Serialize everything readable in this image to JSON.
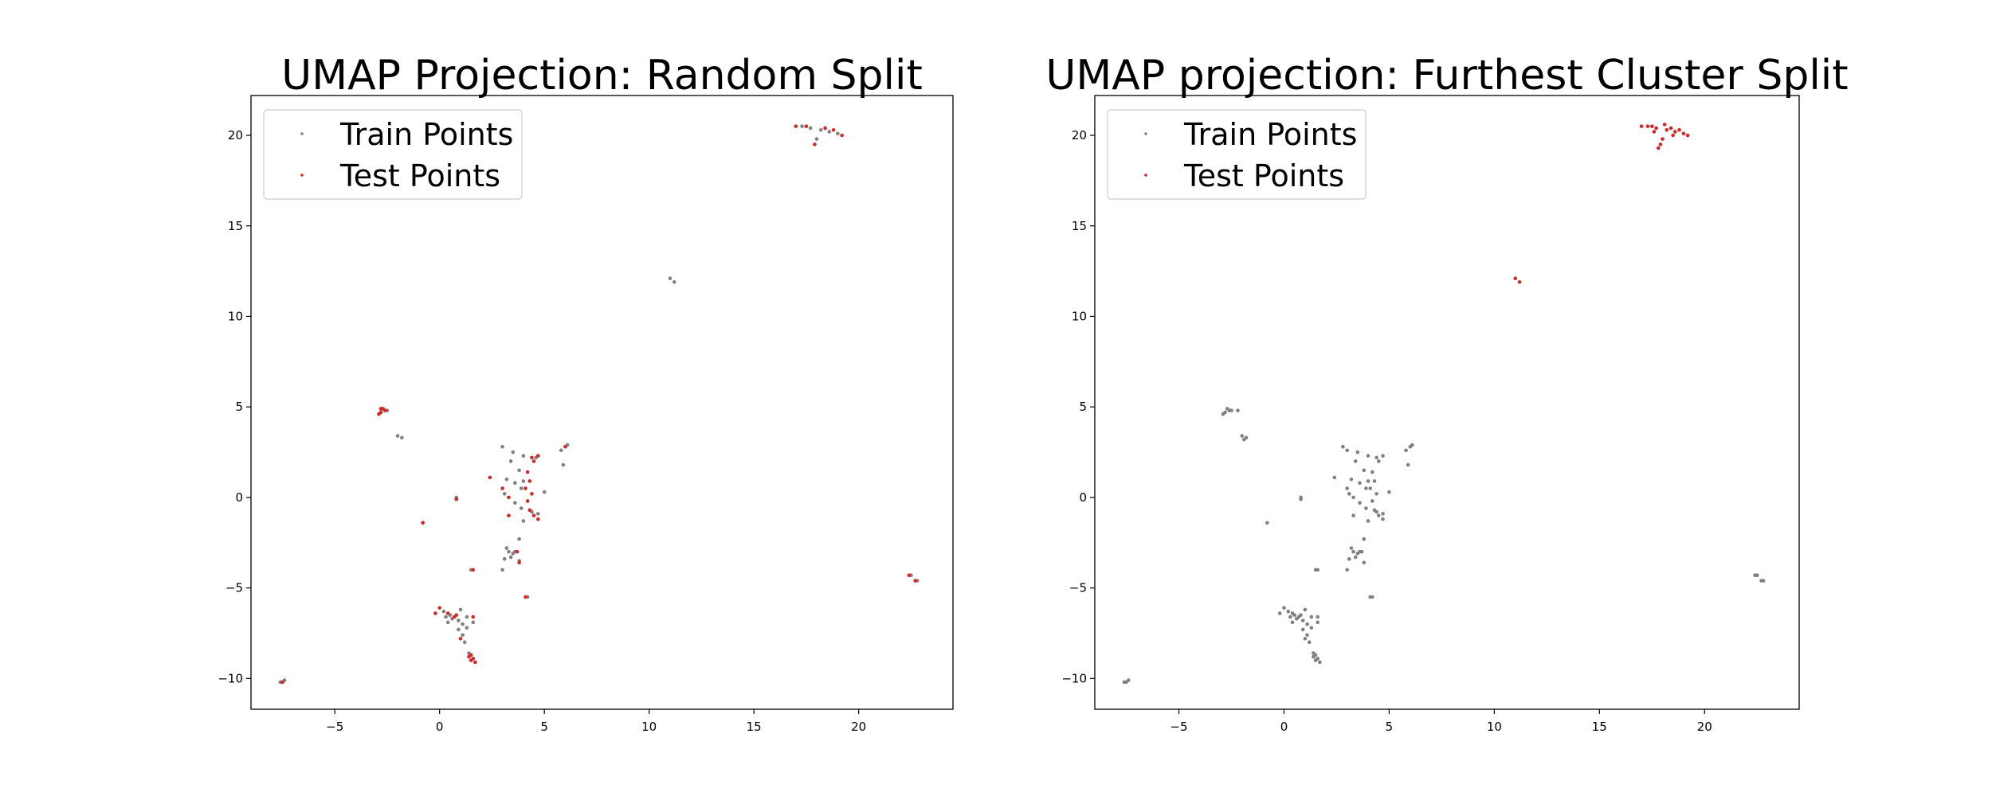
{
  "chart_data": [
    {
      "type": "scatter",
      "title": "UMAP Projection: Random Split",
      "xlabel": "",
      "ylabel": "",
      "xlim": [
        -9,
        24.5
      ],
      "ylim": [
        -11.7,
        22.2
      ],
      "xticks": [
        -5,
        0,
        5,
        10,
        15,
        20
      ],
      "yticks": [
        -10,
        -5,
        0,
        5,
        10,
        15,
        20
      ],
      "grid": false,
      "legend_position": "top-left",
      "series": [
        {
          "name": "Train Points",
          "color": "#808080",
          "points": [
            [
              17.3,
              20.5
            ],
            [
              17.7,
              20.4
            ],
            [
              18.2,
              20.3
            ],
            [
              18.6,
              20.2
            ],
            [
              19.0,
              20.1
            ],
            [
              18.0,
              19.8
            ],
            [
              11.0,
              12.1
            ],
            [
              11.2,
              11.9
            ],
            [
              -2.0,
              3.4
            ],
            [
              -1.8,
              3.3
            ],
            [
              -2.5,
              4.8
            ],
            [
              3.0,
              2.8
            ],
            [
              3.5,
              2.5
            ],
            [
              4.0,
              2.3
            ],
            [
              3.4,
              2.0
            ],
            [
              4.6,
              2.2
            ],
            [
              3.8,
              1.5
            ],
            [
              3.2,
              1.0
            ],
            [
              3.6,
              0.8
            ],
            [
              4.0,
              0.9
            ],
            [
              3.9,
              0.5
            ],
            [
              3.1,
              0.2
            ],
            [
              5.0,
              0.3
            ],
            [
              3.6,
              -0.3
            ],
            [
              3.9,
              -0.6
            ],
            [
              4.4,
              -0.8
            ],
            [
              4.7,
              -0.9
            ],
            [
              4.0,
              -1.3
            ],
            [
              3.8,
              -2.3
            ],
            [
              3.2,
              -2.8
            ],
            [
              3.3,
              -3.0
            ],
            [
              3.5,
              -3.1
            ],
            [
              3.6,
              -3.0
            ],
            [
              3.4,
              -3.3
            ],
            [
              3.1,
              -3.4
            ],
            [
              3.0,
              -4.0
            ],
            [
              3.8,
              -3.5
            ],
            [
              4.2,
              -5.5
            ],
            [
              5.8,
              2.6
            ],
            [
              6.1,
              2.9
            ],
            [
              5.9,
              1.8
            ],
            [
              0.8,
              0.0
            ],
            [
              1.5,
              -4.0
            ],
            [
              0.2,
              -6.3
            ],
            [
              0.3,
              -6.6
            ],
            [
              0.5,
              -6.5
            ],
            [
              0.6,
              -6.7
            ],
            [
              0.9,
              -6.8
            ],
            [
              1.1,
              -7.0
            ],
            [
              1.3,
              -6.6
            ],
            [
              0.4,
              -6.9
            ],
            [
              0.9,
              -7.3
            ],
            [
              1.1,
              -7.6
            ],
            [
              1.2,
              -8.0
            ],
            [
              1.4,
              -8.6
            ],
            [
              1.3,
              -7.2
            ],
            [
              1.6,
              -6.9
            ],
            [
              1.0,
              -6.2
            ],
            [
              22.5,
              -4.3
            ],
            [
              22.8,
              -4.6
            ],
            [
              -7.4,
              -10.1
            ],
            [
              -7.6,
              -10.2
            ],
            [
              -0.8,
              -1.4
            ]
          ]
        },
        {
          "name": "Test Points",
          "color": "#d62728",
          "points": [
            [
              17.0,
              20.5
            ],
            [
              17.5,
              20.5
            ],
            [
              18.4,
              20.4
            ],
            [
              18.8,
              20.3
            ],
            [
              17.9,
              19.5
            ],
            [
              19.2,
              20.0
            ],
            [
              -2.8,
              4.7
            ],
            [
              -2.7,
              4.9
            ],
            [
              -2.9,
              4.6
            ],
            [
              -2.6,
              4.8
            ],
            [
              -2.8,
              4.9
            ],
            [
              4.4,
              2.2
            ],
            [
              4.7,
              2.3
            ],
            [
              4.5,
              2.0
            ],
            [
              6.0,
              2.8
            ],
            [
              2.4,
              1.1
            ],
            [
              4.2,
              1.4
            ],
            [
              4.3,
              0.9
            ],
            [
              4.1,
              0.5
            ],
            [
              4.4,
              0.2
            ],
            [
              3.0,
              0.5
            ],
            [
              3.3,
              0.0
            ],
            [
              4.2,
              -0.2
            ],
            [
              4.3,
              -0.7
            ],
            [
              4.5,
              -1.0
            ],
            [
              4.7,
              -1.2
            ],
            [
              3.3,
              -1.0
            ],
            [
              3.7,
              -3.0
            ],
            [
              3.8,
              -3.6
            ],
            [
              4.1,
              -5.5
            ],
            [
              0.8,
              -0.1
            ],
            [
              -0.8,
              -1.4
            ],
            [
              1.6,
              -4.0
            ],
            [
              -0.2,
              -6.4
            ],
            [
              0.0,
              -6.1
            ],
            [
              0.4,
              -6.4
            ],
            [
              0.7,
              -6.6
            ],
            [
              0.8,
              -6.5
            ],
            [
              1.4,
              -8.8
            ],
            [
              1.5,
              -9.0
            ],
            [
              1.6,
              -8.9
            ],
            [
              1.7,
              -9.1
            ],
            [
              1.5,
              -8.7
            ],
            [
              1.6,
              -6.6
            ],
            [
              1.0,
              -7.8
            ],
            [
              22.4,
              -4.3
            ],
            [
              22.7,
              -4.6
            ],
            [
              -7.5,
              -10.2
            ]
          ]
        }
      ]
    },
    {
      "type": "scatter",
      "title": "UMAP projection: Furthest Cluster Split",
      "xlabel": "",
      "ylabel": "",
      "xlim": [
        -9,
        24.5
      ],
      "ylim": [
        -11.7,
        22.2
      ],
      "xticks": [
        -5,
        0,
        5,
        10,
        15,
        20
      ],
      "yticks": [
        -10,
        -5,
        0,
        5,
        10,
        15,
        20
      ],
      "grid": false,
      "legend_position": "top-left",
      "series": [
        {
          "name": "Train Points",
          "color": "#808080",
          "points": [
            [
              -2.8,
              4.7
            ],
            [
              -2.7,
              4.9
            ],
            [
              -2.9,
              4.6
            ],
            [
              -2.6,
              4.8
            ],
            [
              -2.5,
              4.8
            ],
            [
              -2.2,
              4.8
            ],
            [
              -2.0,
              3.4
            ],
            [
              -1.8,
              3.3
            ],
            [
              -1.9,
              3.2
            ],
            [
              2.8,
              2.8
            ],
            [
              3.0,
              2.6
            ],
            [
              3.5,
              2.5
            ],
            [
              4.0,
              2.3
            ],
            [
              3.4,
              2.0
            ],
            [
              4.4,
              2.2
            ],
            [
              4.7,
              2.3
            ],
            [
              4.5,
              2.0
            ],
            [
              3.8,
              1.5
            ],
            [
              4.2,
              1.4
            ],
            [
              2.4,
              1.1
            ],
            [
              3.2,
              1.0
            ],
            [
              3.6,
              0.8
            ],
            [
              4.0,
              0.9
            ],
            [
              4.3,
              0.9
            ],
            [
              3.9,
              0.5
            ],
            [
              4.1,
              0.5
            ],
            [
              3.0,
              0.5
            ],
            [
              3.1,
              0.2
            ],
            [
              4.4,
              0.2
            ],
            [
              5.0,
              0.3
            ],
            [
              3.3,
              0.0
            ],
            [
              4.2,
              -0.2
            ],
            [
              3.6,
              -0.3
            ],
            [
              3.9,
              -0.6
            ],
            [
              4.3,
              -0.7
            ],
            [
              4.4,
              -0.8
            ],
            [
              4.7,
              -0.9
            ],
            [
              4.5,
              -1.0
            ],
            [
              4.7,
              -1.2
            ],
            [
              4.0,
              -1.3
            ],
            [
              3.3,
              -1.0
            ],
            [
              3.8,
              -2.3
            ],
            [
              3.2,
              -2.8
            ],
            [
              3.3,
              -3.0
            ],
            [
              3.5,
              -3.1
            ],
            [
              3.6,
              -3.0
            ],
            [
              3.4,
              -3.3
            ],
            [
              3.1,
              -3.4
            ],
            [
              3.7,
              -3.0
            ],
            [
              3.8,
              -3.6
            ],
            [
              3.0,
              -4.0
            ],
            [
              4.2,
              -5.5
            ],
            [
              4.1,
              -5.5
            ],
            [
              5.8,
              2.6
            ],
            [
              6.0,
              2.8
            ],
            [
              6.1,
              2.9
            ],
            [
              5.9,
              1.8
            ],
            [
              0.8,
              0.0
            ],
            [
              0.8,
              -0.1
            ],
            [
              -0.8,
              -1.4
            ],
            [
              1.5,
              -4.0
            ],
            [
              1.6,
              -4.0
            ],
            [
              -0.2,
              -6.4
            ],
            [
              0.0,
              -6.1
            ],
            [
              0.2,
              -6.3
            ],
            [
              0.3,
              -6.6
            ],
            [
              0.4,
              -6.4
            ],
            [
              0.5,
              -6.5
            ],
            [
              0.6,
              -6.7
            ],
            [
              0.7,
              -6.6
            ],
            [
              0.8,
              -6.5
            ],
            [
              0.9,
              -6.8
            ],
            [
              1.1,
              -7.0
            ],
            [
              1.3,
              -6.6
            ],
            [
              0.4,
              -6.9
            ],
            [
              0.9,
              -7.3
            ],
            [
              1.0,
              -7.8
            ],
            [
              1.1,
              -7.6
            ],
            [
              1.2,
              -8.0
            ],
            [
              1.4,
              -8.6
            ],
            [
              1.3,
              -7.2
            ],
            [
              1.6,
              -6.9
            ],
            [
              1.6,
              -6.6
            ],
            [
              1.0,
              -6.2
            ],
            [
              1.4,
              -8.8
            ],
            [
              1.5,
              -9.0
            ],
            [
              1.6,
              -8.9
            ],
            [
              1.7,
              -9.1
            ],
            [
              1.5,
              -8.7
            ],
            [
              22.4,
              -4.3
            ],
            [
              22.5,
              -4.3
            ],
            [
              22.7,
              -4.6
            ],
            [
              22.8,
              -4.6
            ],
            [
              -7.4,
              -10.1
            ],
            [
              -7.5,
              -10.2
            ],
            [
              -7.6,
              -10.2
            ]
          ]
        },
        {
          "name": "Test Points",
          "color": "#d62728",
          "points": [
            [
              17.0,
              20.5
            ],
            [
              17.3,
              20.5
            ],
            [
              17.5,
              20.5
            ],
            [
              17.7,
              20.4
            ],
            [
              18.2,
              20.3
            ],
            [
              18.4,
              20.4
            ],
            [
              18.6,
              20.2
            ],
            [
              18.8,
              20.3
            ],
            [
              19.0,
              20.1
            ],
            [
              19.2,
              20.0
            ],
            [
              18.0,
              19.8
            ],
            [
              17.9,
              19.5
            ],
            [
              17.8,
              19.3
            ],
            [
              18.1,
              20.6
            ],
            [
              17.6,
              20.2
            ],
            [
              18.5,
              20.0
            ],
            [
              11.0,
              12.1
            ],
            [
              11.2,
              11.9
            ]
          ]
        }
      ]
    }
  ]
}
